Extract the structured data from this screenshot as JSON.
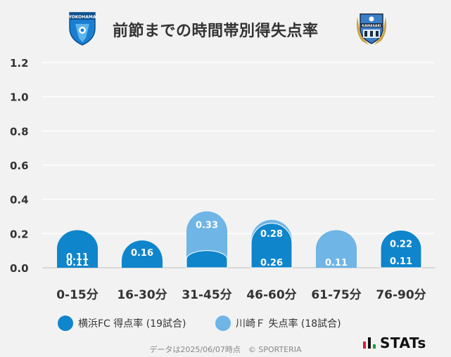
{
  "title": "前節までの時間帯別得失点率",
  "teams": {
    "home_logo_text": "YOKOHAMA",
    "away_logo_text": "KAWASAKI"
  },
  "legend": {
    "home": "横浜FC 得点率 (19試合)",
    "away": "川崎Ｆ 失点率 (18試合)"
  },
  "footer": "データは2025/06/07時点　© SPORTERIA",
  "brand": "STATs",
  "colors": {
    "home": "#0f85cc",
    "away": "#6fb5e6",
    "background": "#f2f2f2",
    "grid": "#ffffff"
  },
  "chart_data": {
    "type": "bar",
    "title": "前節までの時間帯別得失点率",
    "categories": [
      "0-15分",
      "16-30分",
      "31-45分",
      "46-60分",
      "61-75分",
      "76-90分"
    ],
    "series": [
      {
        "name": "横浜FC 得点率 (19試合)",
        "values": [
          0.11,
          0.16,
          0.05,
          0.26,
          0.0,
          0.11
        ],
        "labels": [
          "0.11",
          "0.16",
          "",
          "0.26",
          "",
          "0.11"
        ]
      },
      {
        "name": "川崎Ｆ 失点率 (18試合)",
        "values": [
          0.11,
          0.0,
          0.33,
          0.28,
          0.11,
          0.22
        ],
        "labels": [
          "0.11",
          "",
          "0.33",
          "0.28",
          "0.11",
          "0.22"
        ]
      }
    ],
    "yticks": [
      "0.0",
      "0.2",
      "0.4",
      "0.6",
      "0.8",
      "1.0",
      "1.2"
    ],
    "ylim": [
      0,
      1.2
    ],
    "grid": true,
    "legend_position": "bottom"
  }
}
